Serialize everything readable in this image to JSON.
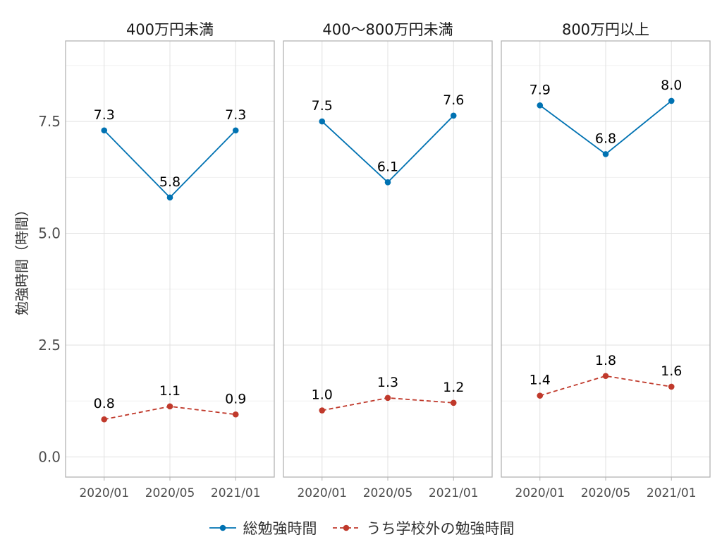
{
  "chart_data": {
    "type": "line",
    "ylabel": "勉強時間（時間）",
    "xlabel": "",
    "ylim": [
      -0.45,
      9.3
    ],
    "yticks": [
      0.0,
      2.5,
      5.0,
      7.5
    ],
    "ytick_labels": [
      "0.0",
      "2.5",
      "5.0",
      "7.5"
    ],
    "categories": [
      "2020/01",
      "2020/05",
      "2021/01"
    ],
    "grid": true,
    "legend_position": "bottom",
    "series_styles": [
      {
        "name": "総勉強時間",
        "color": "#0072B2",
        "dash": "solid"
      },
      {
        "name": "うち学校外の勉強時間",
        "color": "#C0392B",
        "dash": "dashed"
      }
    ],
    "panels": [
      {
        "title": "400万円未満",
        "series": [
          {
            "name": "総勉強時間",
            "values": [
              7.3,
              5.8,
              7.3
            ],
            "labels": [
              "7.3",
              "5.8",
              "7.3"
            ]
          },
          {
            "name": "うち学校外の勉強時間",
            "values": [
              0.84,
              1.13,
              0.95
            ],
            "labels": [
              "0.8",
              "1.1",
              "0.9"
            ]
          }
        ]
      },
      {
        "title": "400～800万円未満",
        "series": [
          {
            "name": "総勉強時間",
            "values": [
              7.5,
              6.14,
              7.63
            ],
            "labels": [
              "7.5",
              "6.1",
              "7.6"
            ]
          },
          {
            "name": "うち学校外の勉強時間",
            "values": [
              1.04,
              1.32,
              1.21
            ],
            "labels": [
              "1.0",
              "1.3",
              "1.2"
            ]
          }
        ]
      },
      {
        "title": "800万円以上",
        "series": [
          {
            "name": "総勉強時間",
            "values": [
              7.86,
              6.77,
              7.96
            ],
            "labels": [
              "7.9",
              "6.8",
              "8.0"
            ]
          },
          {
            "name": "うち学校外の勉強時間",
            "values": [
              1.37,
              1.81,
              1.57
            ],
            "labels": [
              "1.4",
              "1.8",
              "1.6"
            ]
          }
        ]
      }
    ]
  }
}
